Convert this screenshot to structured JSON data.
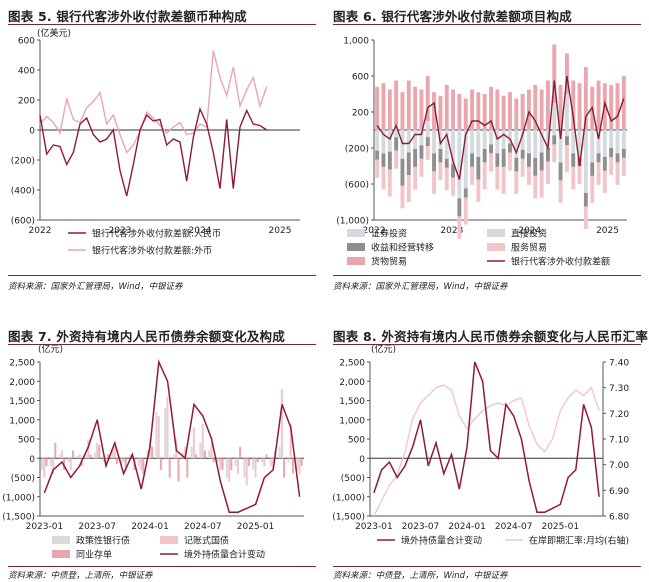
{
  "colors": {
    "crimson": "#8e1b33",
    "pink": "#eaa6ad",
    "light_pink": "#f2c6c9",
    "gray": "#b3b3b3",
    "light_gray": "#d5d9e0",
    "dark_gray": "#8f8f8f",
    "axis": "#555555",
    "rule": "#7a2432"
  },
  "panels": [
    {
      "title": "图表 5.  银行代客涉外收付款差额币种构成",
      "source": "资料来源：国家外汇管理局，Wind，中银证券"
    },
    {
      "title": "图表 6.  银行代客涉外收付款差额项目构成",
      "source": "资料来源：国家外汇管理局，Wind，中银证券"
    },
    {
      "title": "图表 7.  外资持有境内人民币债券余额变化及构成",
      "source": "资料来源：中债登，上清所，中银证券"
    },
    {
      "title": "图表 8.  外资持有境内人民币债券余额变化与人民币汇率",
      "source": "资料来源：中债登，上清所，Wind，中银证券"
    }
  ],
  "chart_data": [
    {
      "type": "line",
      "unit": "(亿美元)",
      "ylim": [
        -600,
        600
      ],
      "yticks": [
        -600,
        -400,
        -200,
        0,
        200,
        400,
        600
      ],
      "ytick_labels": [
        "(600)",
        "(400)",
        "(200)",
        "0",
        "200",
        "400",
        "600"
      ],
      "x_count": 40,
      "xtick_labels": [
        {
          "i": 0,
          "label": "2022"
        },
        {
          "i": 12,
          "label": "2023"
        },
        {
          "i": 24,
          "label": "2024"
        },
        {
          "i": 36,
          "label": "2025"
        }
      ],
      "legend_position": "bottom",
      "series": [
        {
          "name": "银行代客涉外收付款差额:人民币",
          "color": "crimson",
          "values": [
            100,
            -160,
            -100,
            -110,
            -230,
            -150,
            40,
            80,
            -30,
            -80,
            -60,
            0,
            -270,
            -440,
            -230,
            0,
            100,
            60,
            70,
            -100,
            -60,
            -80,
            -340,
            -50,
            140,
            40,
            -150,
            -390,
            70,
            -390,
            20,
            130,
            40,
            30,
            0,
            0,
            0,
            0,
            0,
            0
          ]
        },
        {
          "name": "银行代客涉外收付款差额:外币",
          "color": "pink",
          "values": [
            40,
            90,
            50,
            -20,
            210,
            70,
            50,
            150,
            190,
            250,
            40,
            100,
            -30,
            -150,
            -100,
            -10,
            120,
            80,
            30,
            -20,
            20,
            50,
            -30,
            -20,
            40,
            20,
            530,
            350,
            230,
            420,
            160,
            270,
            350,
            160,
            290,
            0,
            0,
            0,
            0,
            0
          ]
        }
      ]
    },
    {
      "type": "bar",
      "unit": "",
      "ylim": [
        -1000,
        1000
      ],
      "yticks": [
        -1000,
        -600,
        -200,
        200,
        600,
        1000
      ],
      "ytick_labels": [
        "(1,000)",
        "(600)",
        "(200)",
        "200",
        "600",
        "1,000"
      ],
      "x_count": 40,
      "xtick_labels": [
        {
          "i": 0,
          "label": "2022"
        },
        {
          "i": 12,
          "label": "2023"
        },
        {
          "i": 24,
          "label": "2024"
        },
        {
          "i": 36,
          "label": "2025"
        }
      ],
      "legend_position": "bottom",
      "series": [
        {
          "name": "证券投资",
          "color": "light_gray",
          "values": [
            -150,
            -200,
            -180,
            50,
            -250,
            -200,
            -150,
            -100,
            100,
            -200,
            -150,
            -250,
            -300,
            -700,
            -600,
            -200,
            -250,
            -150,
            -100,
            -200,
            -150,
            -100,
            -250,
            -150,
            -200,
            -250,
            -200,
            -150,
            300,
            -300,
            400,
            -200,
            -250,
            -650,
            -300,
            -200,
            -250,
            -150,
            -200,
            -150
          ]
        },
        {
          "name": "直接投资",
          "color": "light_gray",
          "values": [
            -80,
            -60,
            -60,
            -80,
            -70,
            -50,
            -60,
            -70,
            -80,
            -60,
            -60,
            -70,
            -80,
            -60,
            -50,
            -60,
            -50,
            -60,
            -60,
            -60,
            -60,
            -50,
            -60,
            -70,
            -60,
            -60,
            -50,
            -50,
            -60,
            -60,
            -70,
            -60,
            -50,
            -50,
            -60,
            -60,
            -50,
            -50,
            -60,
            -60
          ]
        },
        {
          "name": "收益和经营转移",
          "color": "dark_gray",
          "values": [
            -100,
            -150,
            -200,
            -150,
            -300,
            -250,
            -200,
            -150,
            -100,
            -200,
            -150,
            -100,
            -150,
            -200,
            -100,
            -150,
            -250,
            -150,
            -100,
            -150,
            -200,
            -100,
            -150,
            -100,
            -150,
            -200,
            -200,
            -150,
            -100,
            -200,
            -100,
            -150,
            -100,
            -150,
            -150,
            -100,
            -150,
            -100,
            -100,
            -100
          ]
        },
        {
          "name": "服务贸易",
          "color": "light_pink",
          "values": [
            -200,
            -250,
            -300,
            -200,
            -250,
            -300,
            -250,
            -200,
            -150,
            -250,
            -200,
            -250,
            -200,
            -250,
            -300,
            -200,
            -250,
            -300,
            -200,
            -250,
            -300,
            -200,
            -250,
            -200,
            -200,
            -250,
            -300,
            -250,
            -200,
            -250,
            -300,
            -250,
            -200,
            -250,
            -300,
            -250,
            -250,
            -200,
            -250,
            -200
          ]
        },
        {
          "name": "货物贸易",
          "color": "pink",
          "values": [
            480,
            520,
            450,
            500,
            420,
            550,
            480,
            450,
            500,
            420,
            380,
            500,
            450,
            400,
            350,
            450,
            420,
            400,
            480,
            450,
            380,
            420,
            350,
            400,
            450,
            500,
            450,
            550,
            650,
            500,
            450,
            550,
            520,
            700,
            480,
            550,
            520,
            500,
            520,
            600
          ]
        },
        {
          "name": "银行代客涉外收付款差额",
          "color": "crimson",
          "values": [
            50,
            -50,
            -100,
            50,
            -150,
            -150,
            -50,
            -50,
            250,
            300,
            -150,
            -50,
            -350,
            -550,
            -50,
            100,
            100,
            50,
            100,
            -100,
            -50,
            -100,
            -250,
            -50,
            200,
            100,
            -50,
            -200,
            550,
            -100,
            600,
            150,
            -400,
            150,
            250,
            -100,
            300,
            100,
            150,
            350
          ]
        }
      ]
    },
    {
      "type": "bar",
      "unit": "(亿元)",
      "ylim": [
        -1500,
        2500
      ],
      "yticks": [
        -1500,
        -1000,
        -500,
        0,
        500,
        1000,
        1500,
        2000,
        2500
      ],
      "ytick_labels": [
        "(1,500)",
        "(1,000)",
        "(500)",
        "0",
        "500",
        "1,000",
        "1,500",
        "2,000",
        "2,500"
      ],
      "x_count": 30,
      "xtick_labels": [
        {
          "i": 0,
          "label": "2023-01"
        },
        {
          "i": 6,
          "label": "2023-07"
        },
        {
          "i": 12,
          "label": "2024-01"
        },
        {
          "i": 18,
          "label": "2024-07"
        },
        {
          "i": 24,
          "label": "2025-01"
        }
      ],
      "legend_position": "bottom",
      "series": [
        {
          "name": "政策性银行债",
          "color": "light_gray",
          "values": [
            -300,
            -200,
            100,
            -100,
            50,
            100,
            150,
            -100,
            200,
            -150,
            100,
            -200,
            200,
            1200,
            1300,
            100,
            150,
            300,
            400,
            200,
            -100,
            -500,
            -200,
            -500,
            -300,
            -100,
            -200,
            300,
            -100,
            -300
          ]
        },
        {
          "name": "记账式国债",
          "color": "light_pink",
          "values": [
            -500,
            -400,
            200,
            -300,
            100,
            500,
            400,
            -200,
            300,
            -100,
            50,
            -300,
            500,
            1100,
            1600,
            500,
            300,
            800,
            900,
            400,
            -300,
            -600,
            -400,
            -700,
            -500,
            -200,
            -300,
            1800,
            900,
            -400
          ]
        },
        {
          "name": "同业存单",
          "color": "pink",
          "values": [
            -200,
            400,
            -300,
            200,
            -200,
            100,
            350,
            100,
            -150,
            -300,
            -300,
            -400,
            300,
            -300,
            -500,
            -600,
            -500,
            100,
            200,
            -100,
            -300,
            -300,
            300,
            -200,
            -100,
            100,
            200,
            -500,
            -400,
            -200
          ]
        },
        {
          "name": "境外持债量合计变动",
          "color": "crimson",
          "values": [
            -900,
            -300,
            -100,
            -500,
            -200,
            300,
            1000,
            -200,
            400,
            -400,
            100,
            -800,
            300,
            2500,
            2000,
            200,
            0,
            1400,
            1100,
            500,
            -600,
            -1400,
            -1400,
            -1300,
            -1200,
            -500,
            -300,
            1400,
            800,
            -1000
          ]
        }
      ]
    },
    {
      "type": "line",
      "unit": "(亿元)",
      "ylim": [
        -1500,
        2500
      ],
      "yticks": [
        -1500,
        -1000,
        -500,
        0,
        500,
        1000,
        1500,
        2000,
        2500
      ],
      "ytick_labels": [
        "(1,500)",
        "(1,000)",
        "(500)",
        "0",
        "500",
        "1,000",
        "1,500",
        "2,000",
        "2,500"
      ],
      "y2lim": [
        6.8,
        7.4
      ],
      "y2ticks": [
        6.8,
        6.9,
        7.0,
        7.1,
        7.2,
        7.3,
        7.4
      ],
      "y2tick_labels": [
        "6.80",
        "6.90",
        "7.00",
        "7.10",
        "7.20",
        "7.30",
        "7.40"
      ],
      "x_count": 30,
      "xtick_labels": [
        {
          "i": 0,
          "label": "2023-01"
        },
        {
          "i": 6,
          "label": "2023-07"
        },
        {
          "i": 12,
          "label": "2024-01"
        },
        {
          "i": 18,
          "label": "2024-07"
        },
        {
          "i": 24,
          "label": "2025-01"
        }
      ],
      "legend_position": "bottom",
      "series": [
        {
          "name": "境外持债量合计变动",
          "color": "crimson",
          "axis": "left",
          "values": [
            -900,
            -300,
            -100,
            -500,
            -200,
            300,
            1000,
            -200,
            400,
            -400,
            100,
            -800,
            300,
            2500,
            2000,
            200,
            0,
            1400,
            1100,
            500,
            -600,
            -1400,
            -1400,
            -1300,
            -1200,
            -500,
            -300,
            1400,
            800,
            -1000
          ]
        },
        {
          "name": "在岸即期汇率:月均(右轴)",
          "color": "light_pink",
          "axis": "right",
          "values": [
            6.8,
            6.86,
            6.92,
            6.96,
            7.05,
            7.18,
            7.24,
            7.27,
            7.3,
            7.31,
            7.29,
            7.19,
            7.14,
            7.18,
            7.21,
            7.23,
            7.24,
            7.23,
            7.25,
            7.26,
            7.15,
            7.08,
            7.05,
            7.1,
            7.21,
            7.26,
            7.29,
            7.27,
            7.3,
            7.21
          ]
        }
      ]
    }
  ]
}
